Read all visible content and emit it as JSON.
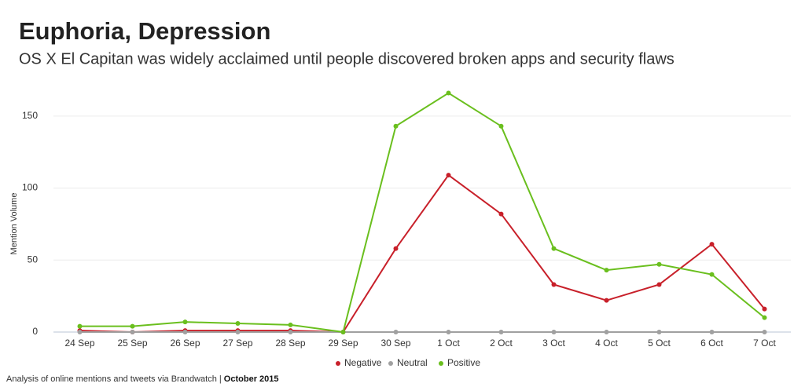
{
  "chart_data": {
    "type": "line",
    "title": "Euphoria, Depression",
    "subtitle": "OS X El Capitan was widely acclaimed until people discovered broken apps and security flaws",
    "y_label": "Mention Volume",
    "categories": [
      "24 Sep",
      "25 Sep",
      "26 Sep",
      "27 Sep",
      "28 Sep",
      "29 Sep",
      "30 Sep",
      "1 Oct",
      "2 Oct",
      "3 Oct",
      "4 Oct",
      "5 Oct",
      "6 Oct",
      "7 Oct"
    ],
    "series": [
      {
        "name": "Negative",
        "color": "#c8202a",
        "values": [
          1,
          0,
          1,
          1,
          1,
          0,
          58,
          109,
          82,
          33,
          22,
          33,
          61,
          16
        ]
      },
      {
        "name": "Neutral",
        "color": "#a0a0a0",
        "values": [
          0,
          0,
          0,
          0,
          0,
          0,
          0,
          0,
          0,
          0,
          0,
          0,
          0,
          0
        ]
      },
      {
        "name": "Positive",
        "color": "#6abf1e",
        "values": [
          4,
          4,
          7,
          6,
          5,
          0,
          143,
          166,
          143,
          58,
          43,
          47,
          40,
          10
        ]
      }
    ],
    "ylim": [
      0,
      175
    ],
    "yticks": [
      0,
      50,
      100,
      150
    ],
    "grid": true,
    "legend": "bottom",
    "footer": {
      "source": "Analysis of online mentions and tweets via Brandwatch |",
      "date": "October 2015"
    }
  }
}
